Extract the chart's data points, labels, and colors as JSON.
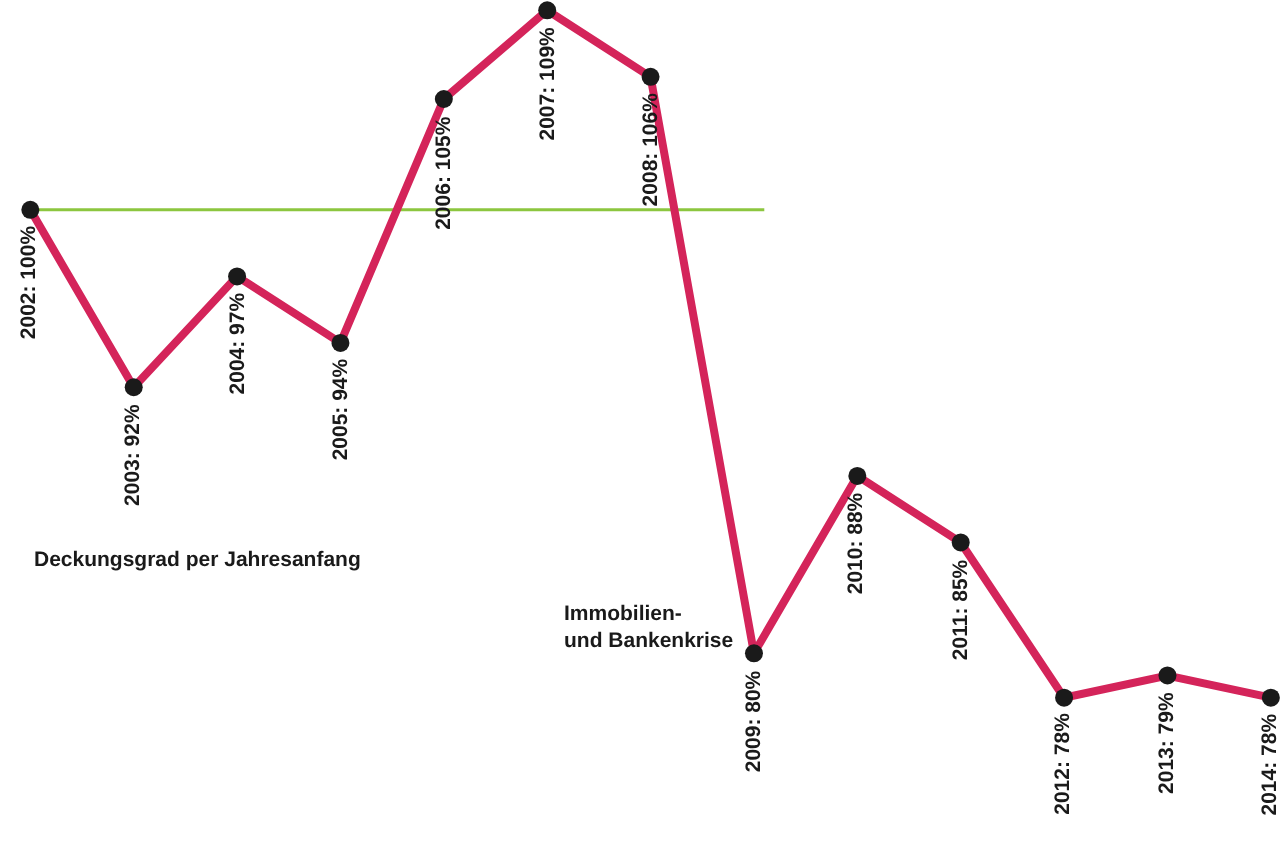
{
  "chart_data": {
    "type": "line",
    "categories": [
      null,
      null,
      null,
      null,
      null,
      null,
      null,
      null,
      null,
      null,
      null,
      null,
      null
    ],
    "series": [
      {
        "color": "#d4245a",
        "values": [
          100,
          92,
          97,
          94,
          105,
          109,
          106,
          80,
          88,
          85,
          78,
          79,
          78
        ],
        "value_labels": [
          "2002: 100%",
          "2003: 92%",
          "2004: 97%",
          "2005: 94%",
          "2006: 105%",
          "2007: 109%",
          "2008: 106%",
          "2009: 80%",
          "2010: 88%",
          "2011: 85%",
          "2012: 78%",
          "2013: 79%",
          "2014: 78%"
        ]
      }
    ],
    "marker": "circle",
    "line_style": "solid",
    "grid": false,
    "legend": false,
    "ref_lines": [
      {
        "axis": "y",
        "value": 100,
        "color": "#8cc63f"
      }
    ],
    "annotations": [
      "Deckungsgrad per Jahresanfang",
      "Immobilien-\nund Bankenkrise"
    ]
  }
}
